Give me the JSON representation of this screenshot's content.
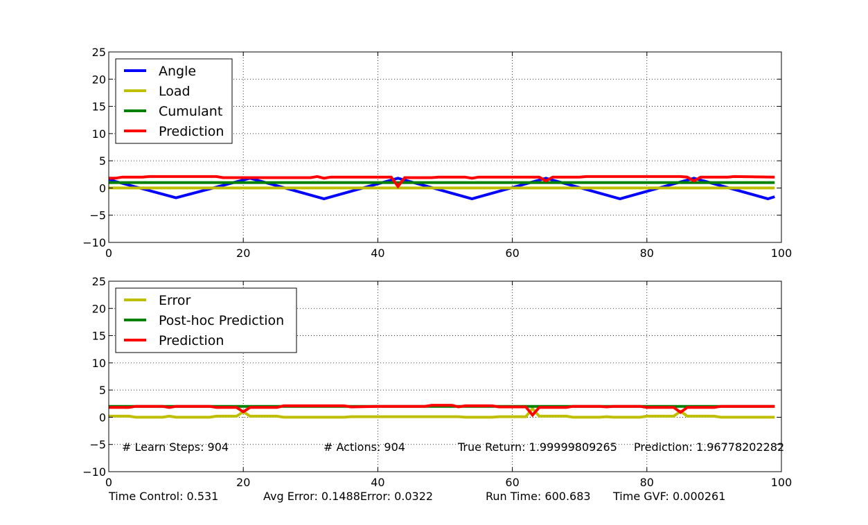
{
  "chart_data": [
    {
      "type": "line",
      "xlim": [
        0,
        100
      ],
      "ylim": [
        -10,
        25
      ],
      "x_ticks": [
        "0",
        "20",
        "40",
        "60",
        "80",
        "100"
      ],
      "y_ticks": [
        "25",
        "20",
        "15",
        "10",
        "5",
        "0",
        "−5",
        "−10"
      ],
      "grid": true,
      "legend_position": "top-left",
      "series": [
        {
          "name": "Angle",
          "color": "#0000ff",
          "points": [
            [
              0,
              1.6
            ],
            [
              1,
              1.2
            ],
            [
              10,
              -1.8
            ],
            [
              21,
              1.8
            ],
            [
              32,
              -2.0
            ],
            [
              43,
              1.8
            ],
            [
              54,
              -2.0
            ],
            [
              65,
              1.8
            ],
            [
              76,
              -2.0
            ],
            [
              87,
              1.8
            ],
            [
              98,
              -2.0
            ],
            [
              99,
              -1.6
            ]
          ]
        },
        {
          "name": "Load",
          "color": "#bfbf00",
          "points": [
            [
              0,
              0.0
            ],
            [
              99,
              0.0
            ]
          ]
        },
        {
          "name": "Cumulant",
          "color": "#008000",
          "points": [
            [
              0,
              1.0
            ],
            [
              99,
              1.0
            ]
          ]
        },
        {
          "name": "Prediction",
          "color": "#ff0000",
          "points": [
            [
              0,
              1.8
            ],
            [
              1,
              1.8
            ],
            [
              2,
              2.0
            ],
            [
              5,
              2.0
            ],
            [
              6,
              2.1
            ],
            [
              16,
              2.1
            ],
            [
              17,
              1.9
            ],
            [
              30,
              1.9
            ],
            [
              31,
              2.1
            ],
            [
              32,
              1.8
            ],
            [
              33,
              2.0
            ],
            [
              42,
              2.0
            ],
            [
              43,
              0.3
            ],
            [
              44,
              1.9
            ],
            [
              48,
              1.9
            ],
            [
              49,
              2.0
            ],
            [
              53,
              2.0
            ],
            [
              54,
              1.8
            ],
            [
              55,
              2.0
            ],
            [
              64,
              2.0
            ],
            [
              65,
              1.3
            ],
            [
              66,
              2.0
            ],
            [
              70,
              2.0
            ],
            [
              71,
              2.1
            ],
            [
              85,
              2.1
            ],
            [
              86,
              2.0
            ],
            [
              87,
              1.3
            ],
            [
              88,
              2.0
            ],
            [
              92,
              2.0
            ],
            [
              93,
              2.1
            ],
            [
              99,
              2.0
            ]
          ]
        }
      ]
    },
    {
      "type": "line",
      "xlim": [
        0,
        100
      ],
      "ylim": [
        -10,
        25
      ],
      "x_ticks": [
        "0",
        "20",
        "40",
        "60",
        "80",
        "100"
      ],
      "y_ticks": [
        "25",
        "20",
        "15",
        "10",
        "5",
        "0",
        "−5",
        "−10"
      ],
      "grid": true,
      "legend_position": "top-left",
      "series": [
        {
          "name": "Error",
          "color": "#bfbf00",
          "points": [
            [
              0,
              0.2
            ],
            [
              3,
              0.2
            ],
            [
              4,
              0.0
            ],
            [
              8,
              0.0
            ],
            [
              9,
              0.2
            ],
            [
              10,
              0.0
            ],
            [
              15,
              0.0
            ],
            [
              16,
              0.2
            ],
            [
              19,
              0.2
            ],
            [
              20,
              1.0
            ],
            [
              21,
              0.2
            ],
            [
              25,
              0.2
            ],
            [
              26,
              0.0
            ],
            [
              35,
              0.0
            ],
            [
              36,
              0.1
            ],
            [
              52,
              0.1
            ],
            [
              53,
              0.0
            ],
            [
              57,
              0.0
            ],
            [
              58,
              0.1
            ],
            [
              62,
              0.1
            ],
            [
              63,
              1.6
            ],
            [
              64,
              0.2
            ],
            [
              68,
              0.2
            ],
            [
              69,
              0.0
            ],
            [
              73,
              0.0
            ],
            [
              74,
              0.1
            ],
            [
              75,
              0.0
            ],
            [
              79,
              0.0
            ],
            [
              80,
              0.2
            ],
            [
              84,
              0.2
            ],
            [
              85,
              1.1
            ],
            [
              86,
              0.2
            ],
            [
              90,
              0.2
            ],
            [
              91,
              0.0
            ],
            [
              99,
              0.0
            ]
          ]
        },
        {
          "name": "Post-hoc Prediction",
          "color": "#008000",
          "points": [
            [
              0,
              2.0
            ],
            [
              99,
              2.0
            ]
          ]
        },
        {
          "name": "Prediction",
          "color": "#ff0000",
          "points": [
            [
              0,
              1.8
            ],
            [
              3,
              1.8
            ],
            [
              4,
              2.0
            ],
            [
              8,
              2.0
            ],
            [
              9,
              1.8
            ],
            [
              10,
              2.0
            ],
            [
              15,
              2.0
            ],
            [
              16,
              1.8
            ],
            [
              19,
              1.8
            ],
            [
              20,
              1.0
            ],
            [
              21,
              1.8
            ],
            [
              25,
              1.8
            ],
            [
              26,
              2.1
            ],
            [
              35,
              2.1
            ],
            [
              36,
              1.9
            ],
            [
              40,
              2.0
            ],
            [
              47,
              2.0
            ],
            [
              48,
              2.2
            ],
            [
              51,
              2.2
            ],
            [
              52,
              1.9
            ],
            [
              53,
              2.1
            ],
            [
              57,
              2.1
            ],
            [
              58,
              1.9
            ],
            [
              62,
              1.9
            ],
            [
              63,
              0.4
            ],
            [
              64,
              1.8
            ],
            [
              68,
              1.8
            ],
            [
              69,
              2.0
            ],
            [
              73,
              2.0
            ],
            [
              74,
              1.9
            ],
            [
              75,
              2.0
            ],
            [
              79,
              2.0
            ],
            [
              80,
              1.8
            ],
            [
              84,
              1.8
            ],
            [
              85,
              0.9
            ],
            [
              86,
              1.8
            ],
            [
              90,
              1.8
            ],
            [
              91,
              2.0
            ],
            [
              99,
              2.0
            ]
          ]
        }
      ],
      "annotations": [
        "# Learn Steps: 904",
        "# Actions: 904",
        "True Return: 1.99999809265",
        "Prediction: 1.96778202282"
      ]
    }
  ],
  "footer": {
    "time_control": "Time Control: 0.531",
    "avg_error": "Avg Error: 0.1488Error: 0.0322",
    "run_time": "Run Time: 600.683",
    "time_gvf": "Time GVF: 0.000261"
  }
}
